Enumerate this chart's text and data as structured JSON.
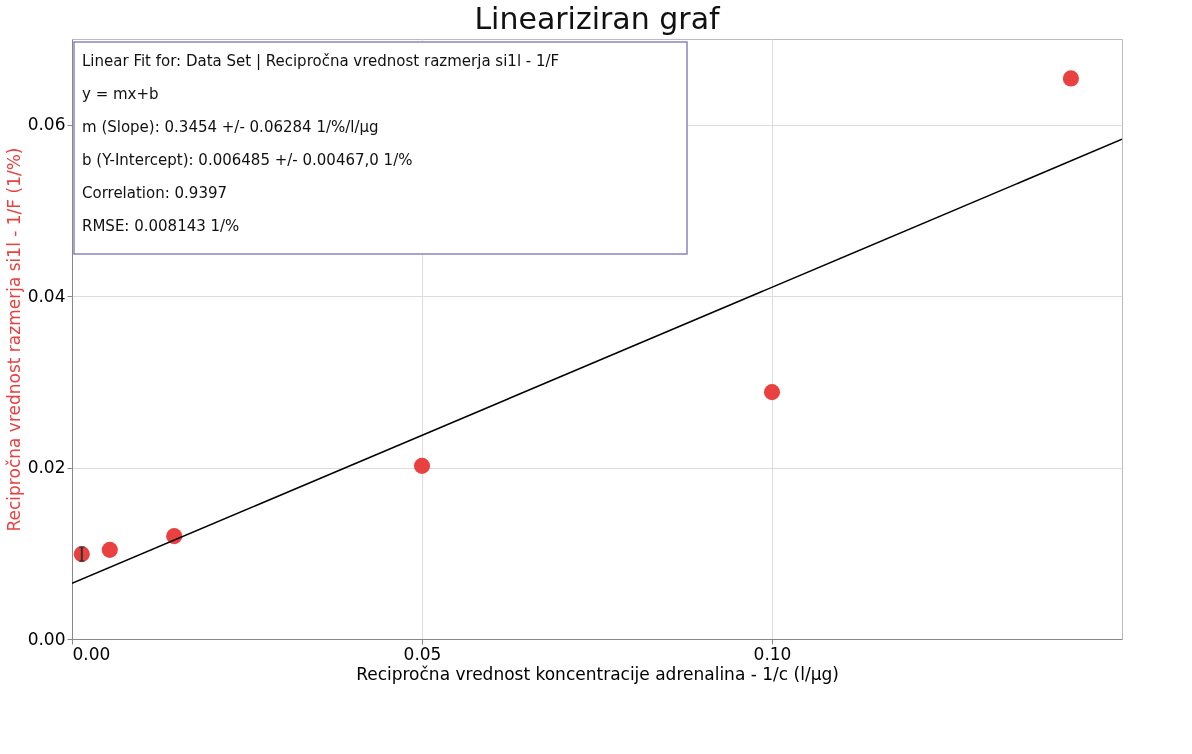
{
  "chart_data": {
    "type": "scatter",
    "title": "Lineariziran graf",
    "xlabel": "Recipročna vrednost koncentracije adrenalina - 1/c (l/µg)",
    "ylabel": "Recipročna vrednost razmerja si1l - 1/F (1/%)",
    "series": [
      {
        "type": "scatter",
        "color": "#e8413f",
        "x": [
          0.0014,
          0.0054,
          0.0146,
          0.05,
          0.1,
          0.1427
        ],
        "values": [
          0.0099,
          0.0104,
          0.012,
          0.0202,
          0.0288,
          0.0654
        ],
        "errors": [
          0.0008,
          null,
          null,
          null,
          null,
          null
        ]
      },
      {
        "type": "line",
        "color": "#000000",
        "marker": "none",
        "x": [
          0,
          0.15
        ],
        "values": [
          0.0065,
          0.0583
        ]
      }
    ],
    "xlim": [
      0,
      0.15
    ],
    "ylim": [
      0,
      0.07
    ],
    "xticks": [
      {
        "value": 0,
        "label": "0.00"
      },
      0.05,
      {
        "value": 0.1,
        "label": "0.10"
      }
    ],
    "yticks": [
      {
        "value": 0,
        "label": "0.00"
      },
      0.02,
      0.04,
      0.06
    ],
    "grid": true,
    "marker": "circle",
    "legend": false,
    "annotations": [
      "Linear Fit for: Data Set | Recipročna vrednost razmerja si1l - 1/F",
      "y = mx+b",
      "m (Slope): 0.3454 +/- 0.06284 1/%/l/µg",
      "b (Y-Intercept): 0.006485 +/- 0.00467,0 1/%",
      "Correlation: 0.9397",
      "RMSE: 0.008143 1/%"
    ]
  }
}
